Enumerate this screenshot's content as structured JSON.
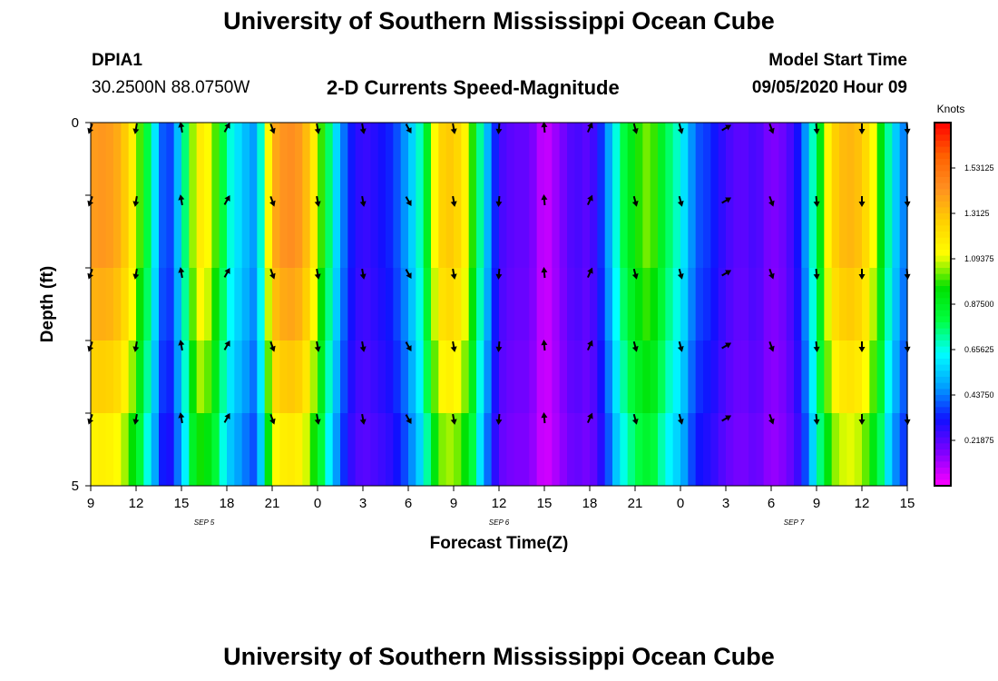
{
  "header": {
    "title": "University of Southern Mississippi Ocean Cube",
    "station_id": "DPIA1",
    "coordinates": "30.2500N 88.0750W",
    "plot_title": "2-D Currents Speed-Magnitude",
    "model_start_label": "Model Start Time",
    "model_start_value": "09/05/2020 Hour 09"
  },
  "footer": {
    "title": "University of Southern Mississippi Ocean Cube"
  },
  "chart_data": {
    "type": "heatmap",
    "xlabel": "Forecast Time(Z)",
    "ylabel": "Depth (ft)",
    "x_tick_labels": [
      "9",
      "12",
      "15",
      "18",
      "21",
      "0",
      "3",
      "6",
      "9",
      "12",
      "15",
      "18",
      "21",
      "0",
      "3",
      "6",
      "9",
      "12",
      "15"
    ],
    "x_tick_hours": [
      0,
      3,
      6,
      9,
      12,
      15,
      18,
      21,
      24,
      27,
      30,
      33,
      36,
      39,
      42,
      45,
      48,
      51,
      54
    ],
    "date_labels": [
      {
        "label": "SEP 5",
        "hour": 7.5
      },
      {
        "label": "SEP 6",
        "hour": 27
      },
      {
        "label": "SEP 7",
        "hour": 46.5
      }
    ],
    "y_tick_labels": [
      "0",
      "5"
    ],
    "ylim": [
      0,
      5
    ],
    "depth_levels": [
      0,
      1,
      2,
      3,
      4,
      5
    ],
    "colorbar": {
      "unit": "Knots",
      "tick_labels": [
        "1.53125",
        "1.3125",
        "1.09375",
        "0.87500",
        "0.65625",
        "0.43750",
        "0.21875"
      ],
      "tick_values": [
        1.53125,
        1.3125,
        1.09375,
        0.875,
        0.65625,
        0.4375,
        0.21875
      ],
      "range": [
        0,
        1.75
      ],
      "colors": [
        "#ff00ff",
        "#8000ff",
        "#1010ff",
        "#00a0ff",
        "#00ffff",
        "#00ff40",
        "#00e000",
        "#ffff00",
        "#ffd000",
        "#ff9020",
        "#ff6000",
        "#ff0000"
      ]
    },
    "speed_profile": {
      "hours": [
        0,
        1,
        2,
        3,
        4,
        5,
        6,
        7,
        8,
        9,
        10,
        11,
        12,
        13,
        14,
        15,
        16,
        17,
        18,
        19,
        20,
        21,
        22,
        23,
        24,
        25,
        26,
        27,
        28,
        29,
        30,
        31,
        32,
        33,
        34,
        35,
        36,
        37,
        38,
        39,
        40,
        41,
        42,
        43,
        44,
        45,
        46,
        47,
        48,
        49,
        50,
        51,
        52,
        53,
        54
      ],
      "speed_knots": [
        1.4,
        1.42,
        1.35,
        1.1,
        0.7,
        0.3,
        0.6,
        1.2,
        1.1,
        0.7,
        0.55,
        0.45,
        1.35,
        1.45,
        1.4,
        1.1,
        0.65,
        0.35,
        0.25,
        0.3,
        0.35,
        0.5,
        0.75,
        1.25,
        1.3,
        1.1,
        0.6,
        0.25,
        0.2,
        0.2,
        0.05,
        0.15,
        0.25,
        0.2,
        0.4,
        0.75,
        0.95,
        1.05,
        0.8,
        0.65,
        0.4,
        0.35,
        0.25,
        0.2,
        0.25,
        0.15,
        0.2,
        0.35,
        0.8,
        1.25,
        1.35,
        1.3,
        1.05,
        0.6,
        0.4
      ]
    },
    "arrow_times": [
      0,
      3,
      6,
      9,
      12,
      15,
      18,
      21,
      24,
      27,
      30,
      33,
      36,
      39,
      42,
      45,
      48,
      51,
      54
    ],
    "arrow_depths": [
      0,
      1,
      2,
      3,
      4
    ],
    "arrow_direction_deg": [
      200,
      190,
      350,
      30,
      160,
      170,
      170,
      150,
      170,
      185,
      355,
      25,
      165,
      165,
      60,
      160,
      175,
      180,
      175
    ]
  }
}
